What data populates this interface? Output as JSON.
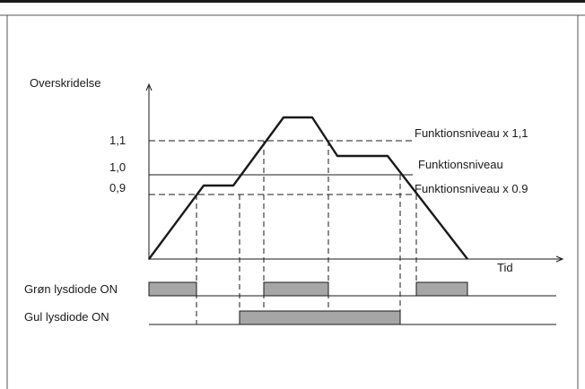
{
  "labels": {
    "y_axis": "Overskridelse",
    "x_axis": "Tid",
    "tick_1_1": "1,1",
    "tick_1_0": "1,0",
    "tick_0_9": "0,9",
    "level_high": "Funktionsniveau x 1,1",
    "level_nominal": "Funktionsniveau",
    "level_low": "Funktionsniveau x 0.9",
    "green_led": "Grøn lysdiode ON",
    "yellow_led": "Gul lysdiode ON"
  },
  "colors": {
    "line": "#1a1a1a",
    "led_fill": "#a6a6a6"
  }
}
